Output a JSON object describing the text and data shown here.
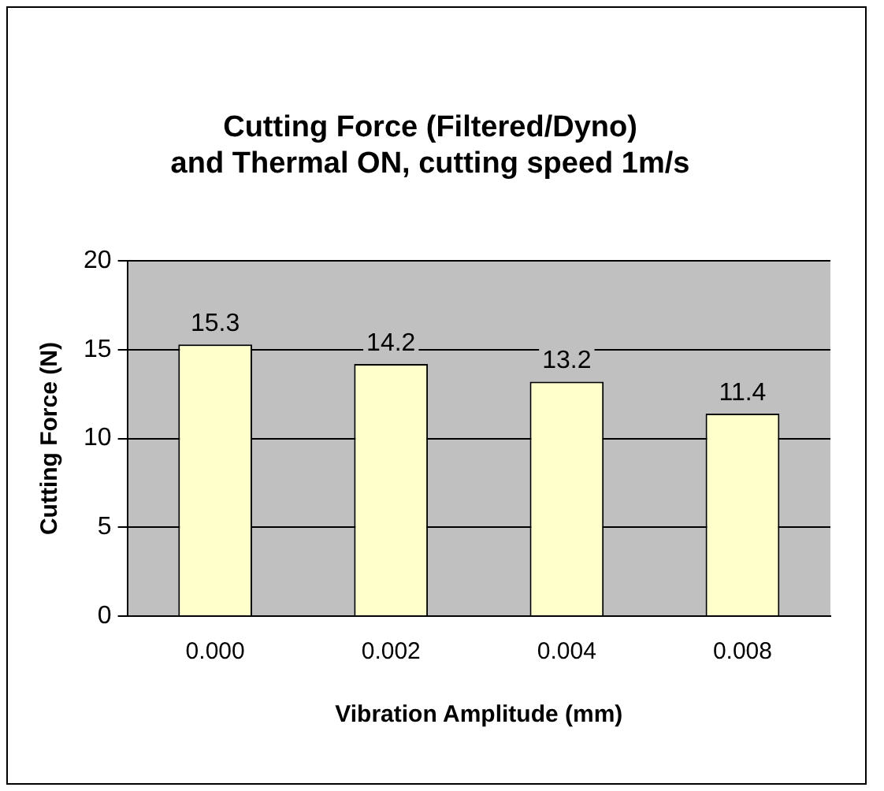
{
  "chart_data": {
    "type": "bar",
    "title": "Cutting Force (Filtered/Dyno)\nand Thermal ON, cutting speed 1m/s",
    "xlabel": "Vibration Amplitude (mm)",
    "ylabel": "Cutting Force (N)",
    "categories": [
      "0.000",
      "0.002",
      "0.004",
      "0.008"
    ],
    "values": [
      15.3,
      14.2,
      13.2,
      11.4
    ],
    "color": "#ffffcc",
    "ylim": [
      0,
      20
    ],
    "yticks": [
      0,
      5,
      10,
      15,
      20
    ],
    "grid": "y",
    "data_labels": true
  }
}
